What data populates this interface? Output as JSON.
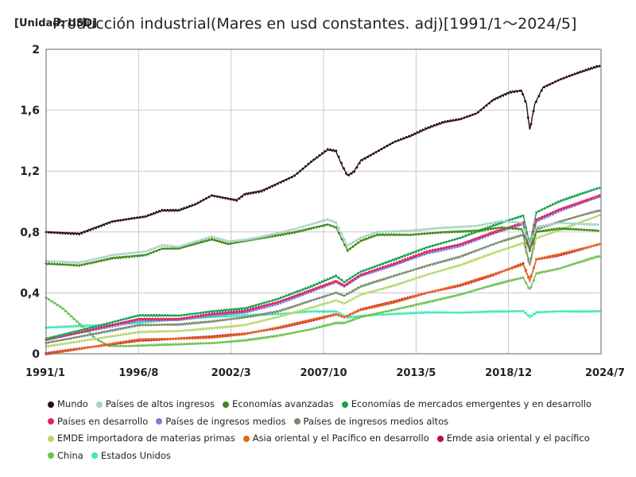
{
  "header": {
    "unit": "[Unidad: USD]",
    "title": "Producción industrial(Mares en usd constantes. adj)[1991/1～2024/5]"
  },
  "chart_data": {
    "type": "line",
    "title": "Producción industrial(Mares en usd constantes. adj)[1991/1～2024/5]",
    "unit": "[Unidad: USD]",
    "x_start": "1991/1",
    "x_end": "2024/7",
    "x_ticks": [
      {
        "t": 1991.0,
        "label": "1991/1"
      },
      {
        "t": 1996.583,
        "label": "1996/8"
      },
      {
        "t": 2002.167,
        "label": "2002/3"
      },
      {
        "t": 2007.75,
        "label": "2007/10"
      },
      {
        "t": 2013.333,
        "label": "2013/5"
      },
      {
        "t": 2018.917,
        "label": "2018/12"
      },
      {
        "t": 2024.5,
        "label": "2024/7"
      }
    ],
    "ylim": [
      0,
      2
    ],
    "y_ticks": [
      {
        "v": 0,
        "label": "0"
      },
      {
        "v": 0.4,
        "label": "0,4"
      },
      {
        "v": 0.8,
        "label": "0,8"
      },
      {
        "v": 1.2,
        "label": "1,2"
      },
      {
        "v": 1.6,
        "label": "1,6"
      },
      {
        "v": 2,
        "label": "2"
      }
    ],
    "grid": true,
    "legend_position": "bottom",
    "series": [
      {
        "name": "Mundo",
        "color": "#2a0f18",
        "points": [
          [
            1991,
            0.8
          ],
          [
            1993,
            0.79
          ],
          [
            1995,
            0.87
          ],
          [
            1997,
            0.9
          ],
          [
            1998,
            0.94
          ],
          [
            1999,
            0.94
          ],
          [
            2000,
            0.98
          ],
          [
            2001,
            1.04
          ],
          [
            2002,
            1.02
          ],
          [
            2002.5,
            1.01
          ],
          [
            2003,
            1.05
          ],
          [
            2004,
            1.07
          ],
          [
            2005,
            1.12
          ],
          [
            2006,
            1.17
          ],
          [
            2007,
            1.26
          ],
          [
            2008,
            1.34
          ],
          [
            2008.5,
            1.33
          ],
          [
            2008.9,
            1.23
          ],
          [
            2009.2,
            1.17
          ],
          [
            2009.6,
            1.2
          ],
          [
            2010,
            1.27
          ],
          [
            2011,
            1.33
          ],
          [
            2012,
            1.39
          ],
          [
            2013,
            1.43
          ],
          [
            2014,
            1.48
          ],
          [
            2015,
            1.52
          ],
          [
            2016,
            1.54
          ],
          [
            2017,
            1.58
          ],
          [
            2018,
            1.67
          ],
          [
            2019,
            1.72
          ],
          [
            2019.7,
            1.73
          ],
          [
            2020.0,
            1.64
          ],
          [
            2020.2,
            1.47
          ],
          [
            2020.5,
            1.64
          ],
          [
            2021,
            1.75
          ],
          [
            2022,
            1.8
          ],
          [
            2023,
            1.84
          ],
          [
            2024.4,
            1.89
          ]
        ]
      },
      {
        "name": "Países de altos ingresos",
        "color": "#a8d4c6",
        "points": [
          [
            1991,
            0.61
          ],
          [
            1993,
            0.6
          ],
          [
            1995,
            0.65
          ],
          [
            1997,
            0.67
          ],
          [
            1998,
            0.71
          ],
          [
            1999,
            0.7
          ],
          [
            2001,
            0.77
          ],
          [
            2002,
            0.74
          ],
          [
            2003,
            0.75
          ],
          [
            2004,
            0.77
          ],
          [
            2006,
            0.82
          ],
          [
            2008,
            0.88
          ],
          [
            2008.5,
            0.86
          ],
          [
            2009.2,
            0.71
          ],
          [
            2010,
            0.76
          ],
          [
            2011,
            0.8
          ],
          [
            2013,
            0.81
          ],
          [
            2015,
            0.83
          ],
          [
            2017,
            0.84
          ],
          [
            2018.5,
            0.87
          ],
          [
            2019.7,
            0.86
          ],
          [
            2020.2,
            0.72
          ],
          [
            2020.6,
            0.83
          ],
          [
            2022,
            0.86
          ],
          [
            2024.4,
            0.85
          ]
        ]
      },
      {
        "name": "Economías avanzadas",
        "color": "#3e8a16",
        "points": [
          [
            1991,
            0.59
          ],
          [
            1993,
            0.58
          ],
          [
            1995,
            0.63
          ],
          [
            1997,
            0.65
          ],
          [
            1998,
            0.69
          ],
          [
            1999,
            0.69
          ],
          [
            2001,
            0.75
          ],
          [
            2002,
            0.72
          ],
          [
            2003,
            0.74
          ],
          [
            2004,
            0.76
          ],
          [
            2006,
            0.8
          ],
          [
            2008,
            0.85
          ],
          [
            2008.5,
            0.83
          ],
          [
            2009.2,
            0.68
          ],
          [
            2010,
            0.74
          ],
          [
            2011,
            0.78
          ],
          [
            2013,
            0.78
          ],
          [
            2015,
            0.8
          ],
          [
            2017,
            0.81
          ],
          [
            2018.5,
            0.83
          ],
          [
            2019.7,
            0.82
          ],
          [
            2020.2,
            0.68
          ],
          [
            2020.6,
            0.8
          ],
          [
            2022,
            0.82
          ],
          [
            2024.4,
            0.81
          ]
        ]
      },
      {
        "name": "Economías de mercados emergentes y en desarrollo",
        "color": "#1aa052",
        "points": [
          [
            1991,
            0.1
          ],
          [
            1996.6,
            0.25
          ],
          [
            1999,
            0.25
          ],
          [
            2001,
            0.28
          ],
          [
            2003,
            0.3
          ],
          [
            2005,
            0.36
          ],
          [
            2007,
            0.44
          ],
          [
            2008.5,
            0.51
          ],
          [
            2009,
            0.47
          ],
          [
            2010,
            0.54
          ],
          [
            2012,
            0.62
          ],
          [
            2014,
            0.7
          ],
          [
            2016,
            0.76
          ],
          [
            2018,
            0.84
          ],
          [
            2019.8,
            0.91
          ],
          [
            2020.2,
            0.72
          ],
          [
            2020.6,
            0.93
          ],
          [
            2022,
            1.0
          ],
          [
            2024.4,
            1.09
          ]
        ]
      },
      {
        "name": "Países en desarrollo",
        "color": "#e0245e",
        "points": [
          [
            1991,
            0.09
          ],
          [
            1996.6,
            0.23
          ],
          [
            1999,
            0.23
          ],
          [
            2001,
            0.26
          ],
          [
            2003,
            0.28
          ],
          [
            2005,
            0.34
          ],
          [
            2007,
            0.42
          ],
          [
            2008.5,
            0.48
          ],
          [
            2009,
            0.45
          ],
          [
            2010,
            0.52
          ],
          [
            2012,
            0.59
          ],
          [
            2014,
            0.67
          ],
          [
            2016,
            0.72
          ],
          [
            2018,
            0.8
          ],
          [
            2019.8,
            0.86
          ],
          [
            2020.2,
            0.68
          ],
          [
            2020.6,
            0.88
          ],
          [
            2022,
            0.95
          ],
          [
            2024.4,
            1.04
          ]
        ]
      },
      {
        "name": "Países de ingresos medios",
        "color": "#8a7ad6",
        "points": [
          [
            1991,
            0.09
          ],
          [
            1996.6,
            0.22
          ],
          [
            1999,
            0.22
          ],
          [
            2001,
            0.25
          ],
          [
            2003,
            0.27
          ],
          [
            2005,
            0.33
          ],
          [
            2007,
            0.41
          ],
          [
            2008.5,
            0.47
          ],
          [
            2009,
            0.44
          ],
          [
            2010,
            0.51
          ],
          [
            2012,
            0.58
          ],
          [
            2014,
            0.66
          ],
          [
            2016,
            0.71
          ],
          [
            2018,
            0.79
          ],
          [
            2019.8,
            0.85
          ],
          [
            2020.2,
            0.67
          ],
          [
            2020.6,
            0.87
          ],
          [
            2022,
            0.94
          ],
          [
            2024.4,
            1.03
          ]
        ]
      },
      {
        "name": "Países de ingresos medios altos",
        "color": "#7a8a6e",
        "points": [
          [
            1991,
            0.07
          ],
          [
            1996.6,
            0.19
          ],
          [
            1999,
            0.19
          ],
          [
            2001,
            0.21
          ],
          [
            2003,
            0.24
          ],
          [
            2005,
            0.28
          ],
          [
            2007,
            0.35
          ],
          [
            2008.5,
            0.4
          ],
          [
            2009,
            0.38
          ],
          [
            2010,
            0.44
          ],
          [
            2012,
            0.51
          ],
          [
            2014,
            0.58
          ],
          [
            2016,
            0.64
          ],
          [
            2018,
            0.72
          ],
          [
            2019.8,
            0.78
          ],
          [
            2020.2,
            0.58
          ],
          [
            2020.6,
            0.82
          ],
          [
            2022,
            0.87
          ],
          [
            2024.4,
            0.94
          ]
        ]
      },
      {
        "name": "EMDE importadora de materias primas",
        "color": "#b8d870",
        "points": [
          [
            1991,
            0.05
          ],
          [
            1996.6,
            0.14
          ],
          [
            1999,
            0.15
          ],
          [
            2001,
            0.17
          ],
          [
            2003,
            0.19
          ],
          [
            2005,
            0.24
          ],
          [
            2007,
            0.3
          ],
          [
            2008.5,
            0.35
          ],
          [
            2009,
            0.33
          ],
          [
            2010,
            0.39
          ],
          [
            2012,
            0.45
          ],
          [
            2014,
            0.52
          ],
          [
            2016,
            0.58
          ],
          [
            2018,
            0.66
          ],
          [
            2019.8,
            0.73
          ],
          [
            2020.2,
            0.58
          ],
          [
            2020.6,
            0.76
          ],
          [
            2022,
            0.81
          ],
          [
            2024.4,
            0.91
          ]
        ]
      },
      {
        "name": "Asia oriental y el Pacífico en desarrollo",
        "color": "#e8641e",
        "points": [
          [
            1991,
            0.0
          ],
          [
            1996.6,
            0.09
          ],
          [
            1999,
            0.1
          ],
          [
            2001,
            0.11
          ],
          [
            2003,
            0.13
          ],
          [
            2005,
            0.17
          ],
          [
            2007,
            0.22
          ],
          [
            2008.5,
            0.26
          ],
          [
            2009,
            0.24
          ],
          [
            2010,
            0.29
          ],
          [
            2012,
            0.34
          ],
          [
            2014,
            0.4
          ],
          [
            2016,
            0.45
          ],
          [
            2018,
            0.52
          ],
          [
            2019.8,
            0.59
          ],
          [
            2020.2,
            0.48
          ],
          [
            2020.6,
            0.62
          ],
          [
            2022,
            0.65
          ],
          [
            2024.4,
            0.72
          ]
        ]
      },
      {
        "name": "Emde asia oriental y el pacífico",
        "color": "#b8123a",
        "points": [
          [
            1991,
            0.0
          ],
          [
            1996.6,
            0.09
          ],
          [
            1999,
            0.1
          ],
          [
            2001,
            0.11
          ],
          [
            2003,
            0.13
          ],
          [
            2005,
            0.17
          ],
          [
            2007,
            0.22
          ],
          [
            2008.5,
            0.26
          ],
          [
            2009,
            0.24
          ],
          [
            2010,
            0.29
          ],
          [
            2012,
            0.34
          ],
          [
            2014,
            0.4
          ],
          [
            2016,
            0.45
          ],
          [
            2018,
            0.52
          ],
          [
            2019.8,
            0.59
          ],
          [
            2020.2,
            0.48
          ],
          [
            2020.6,
            0.62
          ],
          [
            2022,
            0.65
          ],
          [
            2024.4,
            0.72
          ]
        ]
      },
      {
        "name": "China",
        "color": "#6cc050",
        "points": [
          [
            1991,
            0.37
          ],
          [
            1992,
            0.3
          ],
          [
            1993,
            0.2
          ],
          [
            1994,
            0.1
          ],
          [
            1994.8,
            0.05
          ],
          [
            1996,
            0.05
          ],
          [
            1999,
            0.06
          ],
          [
            2001,
            0.07
          ],
          [
            2003,
            0.09
          ],
          [
            2005,
            0.12
          ],
          [
            2007,
            0.16
          ],
          [
            2008.5,
            0.2
          ],
          [
            2009,
            0.2
          ],
          [
            2010,
            0.24
          ],
          [
            2012,
            0.29
          ],
          [
            2014,
            0.34
          ],
          [
            2016,
            0.39
          ],
          [
            2018,
            0.45
          ],
          [
            2019.8,
            0.5
          ],
          [
            2020.2,
            0.42
          ],
          [
            2020.6,
            0.53
          ],
          [
            2022,
            0.56
          ],
          [
            2024.4,
            0.64
          ]
        ]
      },
      {
        "name": "Estados Unidos",
        "color": "#3ee8b8",
        "points": [
          [
            1991,
            0.17
          ],
          [
            1993,
            0.18
          ],
          [
            1995,
            0.19
          ],
          [
            1997,
            0.21
          ],
          [
            1999,
            0.23
          ],
          [
            2001,
            0.24
          ],
          [
            2003,
            0.25
          ],
          [
            2005,
            0.26
          ],
          [
            2007,
            0.28
          ],
          [
            2008.5,
            0.28
          ],
          [
            2009.2,
            0.24
          ],
          [
            2010,
            0.25
          ],
          [
            2012,
            0.26
          ],
          [
            2014,
            0.27
          ],
          [
            2016,
            0.27
          ],
          [
            2018,
            0.28
          ],
          [
            2019.8,
            0.28
          ],
          [
            2020.2,
            0.24
          ],
          [
            2020.6,
            0.27
          ],
          [
            2022,
            0.28
          ],
          [
            2024.4,
            0.28
          ]
        ]
      }
    ]
  }
}
